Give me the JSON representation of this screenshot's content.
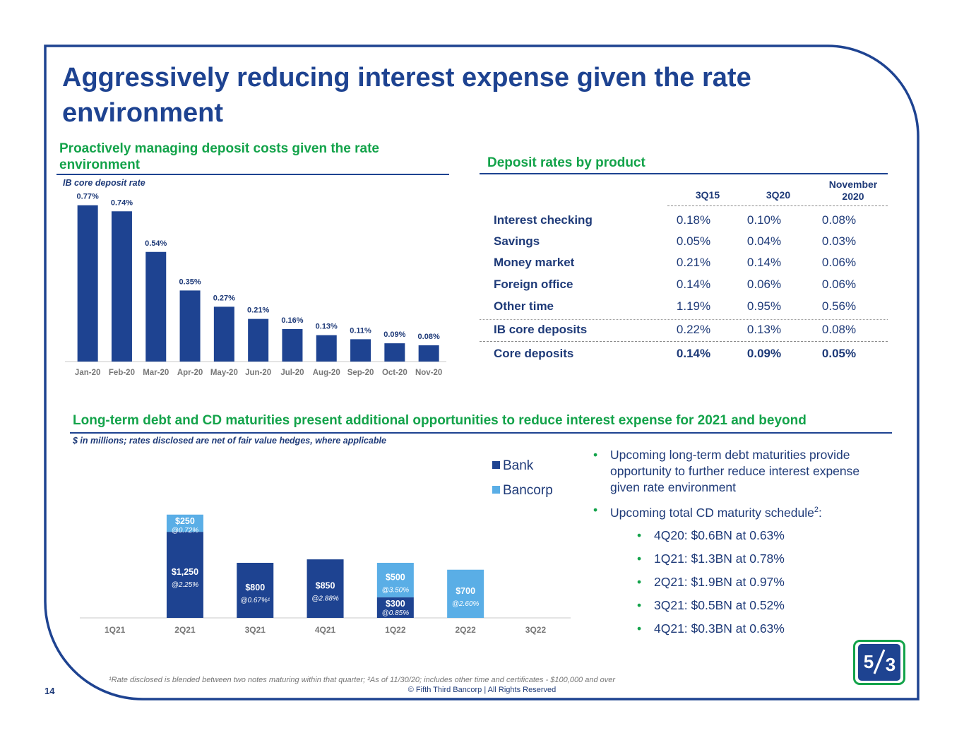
{
  "title": "Aggressively reducing interest expense given the rate environment",
  "left_section": {
    "heading": "Proactively managing deposit costs given the rate environment",
    "subtitle": "IB core deposit rate"
  },
  "right_section": {
    "heading": "Deposit rates by product",
    "columns": [
      "3Q15",
      "3Q20",
      "November 2020"
    ],
    "rows": [
      {
        "name": "Interest checking",
        "values": [
          "0.18%",
          "0.10%",
          "0.08%"
        ]
      },
      {
        "name": "Savings",
        "values": [
          "0.05%",
          "0.04%",
          "0.03%"
        ]
      },
      {
        "name": "Money market",
        "values": [
          "0.21%",
          "0.14%",
          "0.06%"
        ]
      },
      {
        "name": "Foreign office",
        "values": [
          "0.14%",
          "0.06%",
          "0.06%"
        ]
      },
      {
        "name": "Other time",
        "values": [
          "1.19%",
          "0.95%",
          "0.56%"
        ]
      },
      {
        "name": "IB core deposits",
        "values": [
          "0.22%",
          "0.13%",
          "0.08%"
        ]
      },
      {
        "name": "Core deposits",
        "values": [
          "0.14%",
          "0.09%",
          "0.05%"
        ]
      }
    ]
  },
  "bottom_section": {
    "heading": "Long-term debt and CD maturities present additional opportunities to reduce interest expense for 2021 and beyond",
    "subtitle": "$ in millions; rates disclosed are net of fair value hedges, where applicable"
  },
  "bullets": {
    "b1": "Upcoming long-term debt maturities provide opportunity to further reduce interest expense given rate environment",
    "b2_text": "Upcoming total CD maturity schedule",
    "b2_sup": "2",
    "b2_end": ":",
    "sub": [
      "4Q20: $0.6BN at 0.63%",
      "1Q21: $1.3BN at 0.78%",
      "2Q21: $1.9BN at 0.97%",
      "3Q21: $0.5BN at 0.52%",
      "4Q21: $0.3BN at 0.63%"
    ]
  },
  "footnote": "¹Rate disclosed is blended between two notes maturing within that quarter; ²As of 11/30/20; includes other time and certificates - $100,000 and over",
  "copyright": "© Fifth Third Bancorp | All Rights Reserved",
  "page_number": "14",
  "colors": {
    "navy": "#1e4391",
    "green": "#13a34a",
    "light_blue": "#5aaee6",
    "bar": "#1e4391"
  },
  "chart_data": [
    {
      "type": "bar",
      "title": "IB core deposit rate",
      "categories": [
        "Jan-20",
        "Feb-20",
        "Mar-20",
        "Apr-20",
        "May-20",
        "Jun-20",
        "Jul-20",
        "Aug-20",
        "Sep-20",
        "Oct-20",
        "Nov-20"
      ],
      "values": [
        0.77,
        0.74,
        0.54,
        0.35,
        0.27,
        0.21,
        0.16,
        0.13,
        0.11,
        0.09,
        0.08
      ],
      "labels": [
        "0.77%",
        "0.74%",
        "0.54%",
        "0.35%",
        "0.27%",
        "0.21%",
        "0.16%",
        "0.13%",
        "0.11%",
        "0.09%",
        "0.08%"
      ],
      "ylim": [
        0,
        0.8
      ]
    },
    {
      "type": "bar",
      "stacked": true,
      "categories": [
        "1Q21",
        "2Q21",
        "3Q21",
        "4Q21",
        "1Q22",
        "2Q22",
        "3Q22"
      ],
      "legend": "top-right",
      "ylim": [
        0,
        2000
      ],
      "series": [
        {
          "name": "Bank",
          "color": "#1e4391",
          "values": [
            0,
            1250,
            800,
            850,
            300,
            0,
            0
          ],
          "labels": [
            "",
            "$1,250",
            "$800",
            "$850",
            "$300",
            "",
            ""
          ],
          "rates": [
            "",
            "@2.25%",
            "@0.67%¹",
            "@2.88%",
            "@0.85%",
            "",
            ""
          ]
        },
        {
          "name": "Bancorp",
          "color": "#5aaee6",
          "values": [
            0,
            250,
            0,
            0,
            500,
            700,
            0
          ],
          "labels": [
            "",
            "$250",
            "",
            "",
            "$500",
            "$700",
            ""
          ],
          "rates": [
            "",
            "@0.72%",
            "",
            "",
            "@3.50%",
            "@2.60%",
            ""
          ]
        }
      ]
    }
  ]
}
